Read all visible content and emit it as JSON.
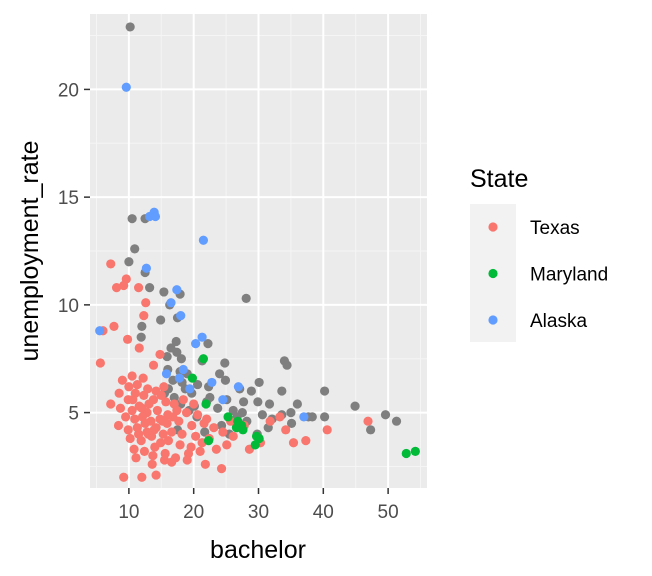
{
  "chart_data": {
    "type": "scatter",
    "title": "",
    "xlabel": "bachelor",
    "ylabel": "unemployment_rate",
    "xlim": [
      4,
      56
    ],
    "ylim": [
      1.5,
      23.5
    ],
    "x_ticks": [
      10,
      20,
      30,
      40,
      50
    ],
    "y_ticks": [
      5,
      10,
      15,
      20
    ],
    "grid": true,
    "legend": {
      "title": "State",
      "position": "right"
    },
    "series": [
      {
        "name": "Other",
        "color": "#7f7f7f",
        "in_legend": false,
        "points": [
          [
            10.2,
            22.9
          ],
          [
            10.5,
            14.0
          ],
          [
            12.5,
            14.0
          ],
          [
            10.9,
            12.6
          ],
          [
            10.0,
            12.0
          ],
          [
            12.5,
            11.5
          ],
          [
            13.2,
            10.8
          ],
          [
            15.4,
            10.6
          ],
          [
            17.9,
            10.5
          ],
          [
            28.1,
            10.3
          ],
          [
            16.3,
            10.0
          ],
          [
            17.5,
            9.4
          ],
          [
            14.9,
            9.3
          ],
          [
            12.0,
            9.0
          ],
          [
            11.9,
            8.5
          ],
          [
            17.3,
            8.3
          ],
          [
            16.5,
            8.0
          ],
          [
            17.4,
            7.8
          ],
          [
            22.2,
            8.2
          ],
          [
            15.9,
            7.6
          ],
          [
            18.1,
            7.5
          ],
          [
            21.3,
            7.4
          ],
          [
            24.8,
            7.3
          ],
          [
            34.0,
            7.4
          ],
          [
            34.4,
            7.2
          ],
          [
            16.0,
            7.0
          ],
          [
            17.9,
            6.9
          ],
          [
            19.0,
            6.8
          ],
          [
            24.0,
            6.8
          ],
          [
            24.9,
            6.5
          ],
          [
            16.8,
            6.5
          ],
          [
            18.2,
            6.4
          ],
          [
            20.6,
            6.3
          ],
          [
            22.3,
            6.2
          ],
          [
            27.1,
            6.1
          ],
          [
            28.9,
            6.0
          ],
          [
            30.1,
            6.4
          ],
          [
            33.6,
            6.0
          ],
          [
            40.2,
            6.0
          ],
          [
            15.5,
            5.9
          ],
          [
            19.7,
            5.9
          ],
          [
            22.5,
            5.7
          ],
          [
            17.0,
            5.7
          ],
          [
            25.1,
            5.6
          ],
          [
            27.7,
            5.5
          ],
          [
            29.9,
            5.5
          ],
          [
            31.7,
            5.4
          ],
          [
            36.0,
            5.4
          ],
          [
            18.0,
            5.4
          ],
          [
            20.1,
            5.3
          ],
          [
            23.7,
            5.2
          ],
          [
            26.1,
            5.1
          ],
          [
            27.5,
            5.0
          ],
          [
            30.6,
            4.9
          ],
          [
            33.6,
            4.9
          ],
          [
            35.0,
            5.0
          ],
          [
            38.3,
            4.8
          ],
          [
            37.7,
            4.8
          ],
          [
            40.2,
            4.8
          ],
          [
            44.9,
            5.3
          ],
          [
            49.6,
            4.9
          ],
          [
            51.3,
            4.6
          ],
          [
            47.3,
            4.2
          ],
          [
            20.5,
            4.8
          ],
          [
            24.3,
            4.4
          ],
          [
            28.2,
            4.6
          ],
          [
            31.5,
            4.3
          ],
          [
            35.1,
            4.5
          ],
          [
            29.8,
            4.0
          ],
          [
            25.5,
            4.0
          ],
          [
            17.5,
            4.2
          ],
          [
            21.7,
            4.1
          ],
          [
            26.7,
            4.8
          ],
          [
            32.1,
            4.7
          ],
          [
            22.0,
            5.5
          ],
          [
            19.3,
            5.1
          ],
          [
            16.1,
            6.1
          ],
          [
            18.7,
            6.1
          ]
        ]
      },
      {
        "name": "Texas",
        "color": "#f8766d",
        "in_legend": true,
        "points": [
          [
            8.1,
            10.8
          ],
          [
            9.2,
            10.9
          ],
          [
            7.2,
            11.9
          ],
          [
            9.6,
            11.2
          ],
          [
            11.5,
            10.8
          ],
          [
            12.6,
            10.1
          ],
          [
            12.3,
            9.5
          ],
          [
            7.7,
            9.0
          ],
          [
            6.0,
            8.8
          ],
          [
            9.8,
            8.4
          ],
          [
            11.6,
            8.0
          ],
          [
            5.6,
            7.3
          ],
          [
            14.8,
            7.7
          ],
          [
            13.8,
            7.2
          ],
          [
            10.5,
            6.7
          ],
          [
            9.0,
            6.5
          ],
          [
            11.3,
            6.3
          ],
          [
            12.9,
            6.1
          ],
          [
            14.2,
            6.0
          ],
          [
            15.4,
            6.2
          ],
          [
            8.5,
            5.9
          ],
          [
            9.9,
            5.6
          ],
          [
            12.3,
            5.8
          ],
          [
            13.8,
            5.6
          ],
          [
            15.7,
            5.5
          ],
          [
            17.0,
            5.4
          ],
          [
            7.2,
            5.4
          ],
          [
            8.7,
            5.2
          ],
          [
            10.5,
            5.1
          ],
          [
            11.6,
            5.3
          ],
          [
            12.8,
            5.0
          ],
          [
            14.4,
            5.1
          ],
          [
            16.0,
            4.9
          ],
          [
            17.4,
            5.1
          ],
          [
            18.9,
            5.0
          ],
          [
            20.6,
            4.9
          ],
          [
            9.5,
            4.8
          ],
          [
            10.9,
            4.7
          ],
          [
            12.1,
            4.8
          ],
          [
            13.4,
            4.6
          ],
          [
            14.8,
            4.7
          ],
          [
            15.9,
            4.5
          ],
          [
            17.7,
            4.6
          ],
          [
            19.7,
            4.4
          ],
          [
            21.6,
            4.5
          ],
          [
            23.1,
            4.3
          ],
          [
            8.4,
            4.4
          ],
          [
            9.9,
            4.2
          ],
          [
            11.3,
            4.3
          ],
          [
            12.8,
            4.1
          ],
          [
            14.2,
            4.3
          ],
          [
            15.3,
            4.0
          ],
          [
            16.6,
            4.1
          ],
          [
            18.2,
            4.0
          ],
          [
            20.3,
            3.9
          ],
          [
            22.4,
            3.8
          ],
          [
            24.5,
            4.1
          ],
          [
            26.7,
            4.3
          ],
          [
            10.2,
            3.8
          ],
          [
            11.9,
            3.7
          ],
          [
            13.5,
            3.9
          ],
          [
            14.9,
            3.6
          ],
          [
            16.1,
            3.7
          ],
          [
            17.9,
            3.5
          ],
          [
            19.6,
            3.4
          ],
          [
            21.3,
            3.6
          ],
          [
            23.5,
            3.3
          ],
          [
            25.1,
            3.5
          ],
          [
            10.8,
            3.3
          ],
          [
            12.4,
            3.2
          ],
          [
            13.7,
            3.0
          ],
          [
            15.6,
            3.1
          ],
          [
            17.2,
            2.9
          ],
          [
            19.0,
            2.8
          ],
          [
            21.8,
            2.6
          ],
          [
            24.3,
            2.4
          ],
          [
            11.1,
            2.9
          ],
          [
            13.6,
            2.6
          ],
          [
            15.5,
            2.8
          ],
          [
            12.0,
            2.0
          ],
          [
            9.2,
            2.0
          ],
          [
            14.2,
            2.1
          ],
          [
            28.6,
            3.3
          ],
          [
            30.3,
            3.6
          ],
          [
            33.3,
            4.8
          ],
          [
            35.4,
            3.6
          ],
          [
            37.3,
            3.7
          ],
          [
            40.6,
            4.2
          ],
          [
            46.9,
            4.6
          ],
          [
            31.8,
            4.6
          ],
          [
            26.1,
            3.9
          ],
          [
            34.2,
            4.2
          ],
          [
            12.5,
            4.5
          ],
          [
            13.1,
            5.4
          ],
          [
            11.0,
            5.9
          ],
          [
            13.0,
            4.0
          ],
          [
            15.0,
            5.8
          ],
          [
            16.8,
            4.8
          ],
          [
            14.0,
            3.4
          ],
          [
            12.2,
            6.6
          ],
          [
            10.0,
            6.2
          ],
          [
            18.4,
            5.6
          ],
          [
            20.0,
            5.4
          ],
          [
            22.0,
            4.7
          ],
          [
            25.7,
            4.6
          ],
          [
            27.8,
            4.4
          ],
          [
            19.2,
            3.1
          ],
          [
            21.0,
            3.2
          ],
          [
            16.6,
            2.7
          ],
          [
            11.5,
            4.0
          ],
          [
            13.9,
            4.2
          ],
          [
            15.2,
            4.6
          ],
          [
            10.6,
            5.6
          ],
          [
            12.0,
            5.2
          ]
        ]
      },
      {
        "name": "Maryland",
        "color": "#00ba38",
        "in_legend": true,
        "points": [
          [
            21.5,
            7.5
          ],
          [
            21.9,
            5.4
          ],
          [
            25.3,
            4.8
          ],
          [
            26.8,
            4.6
          ],
          [
            27.4,
            4.4
          ],
          [
            26.6,
            4.3
          ],
          [
            27.6,
            4.2
          ],
          [
            29.7,
            3.9
          ],
          [
            30.1,
            3.8
          ],
          [
            22.3,
            3.7
          ],
          [
            29.5,
            3.5
          ],
          [
            52.8,
            3.1
          ],
          [
            54.2,
            3.2
          ],
          [
            19.8,
            6.6
          ]
        ]
      },
      {
        "name": "Alaska",
        "color": "#619cff",
        "in_legend": true,
        "points": [
          [
            9.6,
            20.1
          ],
          [
            13.9,
            14.3
          ],
          [
            13.2,
            14.1
          ],
          [
            14.1,
            14.1
          ],
          [
            21.5,
            13.0
          ],
          [
            12.7,
            11.7
          ],
          [
            17.4,
            10.7
          ],
          [
            16.5,
            10.1
          ],
          [
            18.0,
            9.5
          ],
          [
            5.5,
            8.8
          ],
          [
            21.3,
            8.5
          ],
          [
            20.3,
            8.2
          ],
          [
            18.4,
            7.0
          ],
          [
            17.8,
            6.6
          ],
          [
            22.8,
            6.4
          ],
          [
            19.4,
            6.1
          ],
          [
            26.9,
            6.2
          ],
          [
            37.0,
            4.8
          ],
          [
            24.5,
            5.6
          ],
          [
            15.8,
            6.8
          ]
        ]
      }
    ]
  }
}
